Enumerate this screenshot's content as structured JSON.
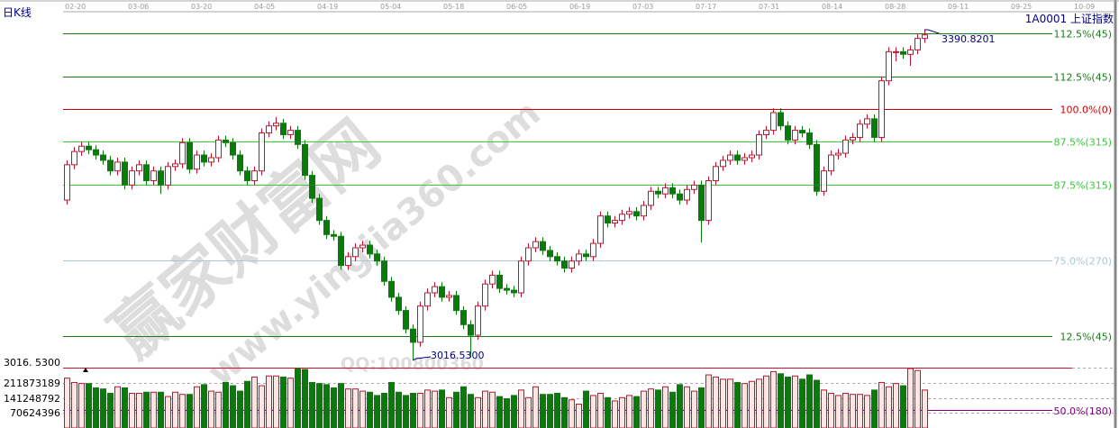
{
  "header": {
    "chart_type_label": "日K线",
    "symbol": "1A0001  上证指数"
  },
  "watermark": {
    "brand": "赢家财富网",
    "site": "www.yingjia360.com",
    "qq": "QQ:100800360"
  },
  "colors": {
    "up": "#c8102e",
    "up_fill": "#ffe4e4",
    "down": "#0a7a0a",
    "axis": "#999999"
  },
  "chart_data": {
    "type": "candlestick",
    "title": "",
    "x_ticks": [
      "02-20",
      "03-06",
      "03-20",
      "04-05",
      "04-19",
      "05-04",
      "05-18",
      "06-05",
      "06-19",
      "07-03",
      "07-17",
      "07-31",
      "08-14",
      "08-28",
      "09-11",
      "09-25",
      "10-09"
    ],
    "price_annotations": {
      "high": "3390.8201",
      "low": "3016.5300",
      "low_axis_label": "3016. 5300"
    },
    "fib_levels": [
      {
        "label": "112.5%(45)",
        "price": 3387,
        "color": "#1e7a1e"
      },
      {
        "label": "112.5%(45)",
        "price": 3338,
        "color": "#1e7a1e"
      },
      {
        "label": "100.0%(0)",
        "price": 3301,
        "color": "#cc0000"
      },
      {
        "label": "87.5%(315)",
        "price": 3264,
        "color": "#33cc33"
      },
      {
        "label": "87.5%(315)",
        "price": 3215,
        "color": "#33cc33"
      },
      {
        "label": "75.0%(270)",
        "price": 3130,
        "color": "#a9c6dc"
      },
      {
        "label": "12.5%(45)",
        "price": 3044,
        "color": "#1e7a1e"
      }
    ],
    "volume_axis_labels": [
      "211873189",
      "141248792",
      "70624396"
    ],
    "volume_fib": {
      "label": "50.0%(180)",
      "color": "#800080"
    },
    "ohlc": [
      [
        3198,
        3243,
        3193,
        3238
      ],
      [
        3238,
        3258,
        3233,
        3253
      ],
      [
        3253,
        3264,
        3248,
        3259
      ],
      [
        3259,
        3264,
        3250,
        3255
      ],
      [
        3255,
        3260,
        3244,
        3249
      ],
      [
        3249,
        3254,
        3238,
        3243
      ],
      [
        3243,
        3248,
        3226,
        3231
      ],
      [
        3231,
        3246,
        3226,
        3241
      ],
      [
        3241,
        3246,
        3210,
        3215
      ],
      [
        3215,
        3236,
        3210,
        3231
      ],
      [
        3231,
        3243,
        3226,
        3238
      ],
      [
        3238,
        3243,
        3215,
        3220
      ],
      [
        3220,
        3236,
        3215,
        3231
      ],
      [
        3231,
        3236,
        3205,
        3215
      ],
      [
        3215,
        3241,
        3210,
        3236
      ],
      [
        3236,
        3244,
        3231,
        3239
      ],
      [
        3239,
        3268,
        3234,
        3263
      ],
      [
        3263,
        3268,
        3228,
        3233
      ],
      [
        3233,
        3254,
        3228,
        3249
      ],
      [
        3249,
        3254,
        3236,
        3241
      ],
      [
        3241,
        3251,
        3236,
        3246
      ],
      [
        3246,
        3271,
        3241,
        3266
      ],
      [
        3266,
        3271,
        3258,
        3263
      ],
      [
        3263,
        3268,
        3244,
        3249
      ],
      [
        3249,
        3254,
        3226,
        3231
      ],
      [
        3231,
        3236,
        3215,
        3220
      ],
      [
        3220,
        3236,
        3215,
        3231
      ],
      [
        3231,
        3279,
        3226,
        3274
      ],
      [
        3274,
        3287,
        3269,
        3282
      ],
      [
        3282,
        3292,
        3277,
        3285
      ],
      [
        3285,
        3290,
        3267,
        3272
      ],
      [
        3272,
        3282,
        3267,
        3277
      ],
      [
        3277,
        3282,
        3256,
        3261
      ],
      [
        3261,
        3266,
        3221,
        3226
      ],
      [
        3226,
        3231,
        3195,
        3200
      ],
      [
        3200,
        3205,
        3170,
        3175
      ],
      [
        3175,
        3180,
        3154,
        3159
      ],
      [
        3159,
        3164,
        3152,
        3157
      ],
      [
        3157,
        3162,
        3119,
        3124
      ],
      [
        3124,
        3139,
        3119,
        3134
      ],
      [
        3134,
        3149,
        3129,
        3144
      ],
      [
        3144,
        3152,
        3139,
        3147
      ],
      [
        3147,
        3152,
        3132,
        3137
      ],
      [
        3137,
        3142,
        3124,
        3129
      ],
      [
        3129,
        3134,
        3101,
        3106
      ],
      [
        3106,
        3111,
        3083,
        3088
      ],
      [
        3088,
        3093,
        3068,
        3073
      ],
      [
        3073,
        3078,
        3047,
        3052
      ],
      [
        3052,
        3057,
        3016.53,
        3037
      ],
      [
        3037,
        3083,
        3032,
        3078
      ],
      [
        3078,
        3098,
        3073,
        3093
      ],
      [
        3093,
        3105,
        3088,
        3100
      ],
      [
        3100,
        3105,
        3083,
        3088
      ],
      [
        3088,
        3095,
        3083,
        3090
      ],
      [
        3090,
        3095,
        3068,
        3073
      ],
      [
        3073,
        3078,
        3052,
        3057
      ],
      [
        3057,
        3062,
        3020,
        3045
      ],
      [
        3045,
        3083,
        3040,
        3078
      ],
      [
        3078,
        3108,
        3073,
        3103
      ],
      [
        3103,
        3118,
        3098,
        3113
      ],
      [
        3113,
        3118,
        3093,
        3098
      ],
      [
        3098,
        3103,
        3091,
        3096
      ],
      [
        3096,
        3101,
        3088,
        3093
      ],
      [
        3093,
        3134,
        3088,
        3129
      ],
      [
        3129,
        3149,
        3124,
        3144
      ],
      [
        3144,
        3156,
        3139,
        3151
      ],
      [
        3151,
        3156,
        3136,
        3141
      ],
      [
        3141,
        3146,
        3129,
        3134
      ],
      [
        3134,
        3139,
        3124,
        3129
      ],
      [
        3129,
        3134,
        3116,
        3121
      ],
      [
        3121,
        3134,
        3116,
        3129
      ],
      [
        3129,
        3142,
        3124,
        3137
      ],
      [
        3137,
        3142,
        3129,
        3134
      ],
      [
        3134,
        3154,
        3129,
        3149
      ],
      [
        3149,
        3185,
        3144,
        3180
      ],
      [
        3180,
        3185,
        3167,
        3172
      ],
      [
        3172,
        3180,
        3167,
        3175
      ],
      [
        3175,
        3187,
        3170,
        3182
      ],
      [
        3182,
        3190,
        3177,
        3185
      ],
      [
        3185,
        3190,
        3175,
        3180
      ],
      [
        3180,
        3197,
        3175,
        3192
      ],
      [
        3192,
        3213,
        3187,
        3208
      ],
      [
        3208,
        3213,
        3200,
        3205
      ],
      [
        3205,
        3217,
        3200,
        3212
      ],
      [
        3212,
        3217,
        3200,
        3205
      ],
      [
        3205,
        3210,
        3193,
        3198
      ],
      [
        3198,
        3215,
        3193,
        3210
      ],
      [
        3210,
        3220,
        3205,
        3215
      ],
      [
        3215,
        3220,
        3150,
        3175
      ],
      [
        3175,
        3225,
        3170,
        3220
      ],
      [
        3220,
        3241,
        3215,
        3236
      ],
      [
        3236,
        3248,
        3231,
        3243
      ],
      [
        3243,
        3254,
        3238,
        3249
      ],
      [
        3249,
        3254,
        3238,
        3243
      ],
      [
        3243,
        3251,
        3238,
        3246
      ],
      [
        3246,
        3254,
        3241,
        3249
      ],
      [
        3249,
        3277,
        3244,
        3272
      ],
      [
        3272,
        3282,
        3267,
        3277
      ],
      [
        3277,
        3302,
        3272,
        3297
      ],
      [
        3297,
        3302,
        3277,
        3282
      ],
      [
        3282,
        3287,
        3261,
        3266
      ],
      [
        3266,
        3282,
        3261,
        3277
      ],
      [
        3277,
        3282,
        3269,
        3274
      ],
      [
        3274,
        3279,
        3256,
        3261
      ],
      [
        3261,
        3266,
        3203,
        3208
      ],
      [
        3208,
        3236,
        3203,
        3231
      ],
      [
        3231,
        3254,
        3226,
        3249
      ],
      [
        3249,
        3256,
        3244,
        3251
      ],
      [
        3251,
        3271,
        3246,
        3266
      ],
      [
        3266,
        3274,
        3261,
        3269
      ],
      [
        3269,
        3289,
        3264,
        3284
      ],
      [
        3284,
        3295,
        3279,
        3290
      ],
      [
        3290,
        3295,
        3264,
        3269
      ],
      [
        3269,
        3338,
        3264,
        3333
      ],
      [
        3333,
        3371,
        3328,
        3366
      ],
      [
        3366,
        3371,
        3355,
        3366
      ],
      [
        3366,
        3371,
        3358,
        3363
      ],
      [
        3363,
        3373,
        3350,
        3368
      ],
      [
        3368,
        3386,
        3363,
        3381
      ],
      [
        3381,
        3390.82,
        3376,
        3385
      ]
    ],
    "volume": [
      230000000,
      210000000,
      205000000,
      205000000,
      185000000,
      180000000,
      160000000,
      190000000,
      185000000,
      160000000,
      160000000,
      165000000,
      165000000,
      165000000,
      145000000,
      165000000,
      155000000,
      155000000,
      190000000,
      200000000,
      170000000,
      165000000,
      210000000,
      195000000,
      170000000,
      215000000,
      235000000,
      195000000,
      240000000,
      240000000,
      235000000,
      230000000,
      275000000,
      270000000,
      210000000,
      205000000,
      200000000,
      185000000,
      205000000,
      180000000,
      180000000,
      170000000,
      165000000,
      150000000,
      160000000,
      210000000,
      165000000,
      150000000,
      160000000,
      160000000,
      175000000,
      170000000,
      175000000,
      140000000,
      165000000,
      190000000,
      155000000,
      140000000,
      170000000,
      165000000,
      145000000,
      135000000,
      150000000,
      175000000,
      140000000,
      190000000,
      155000000,
      155000000,
      160000000,
      140000000,
      130000000,
      110000000,
      170000000,
      150000000,
      160000000,
      140000000,
      125000000,
      140000000,
      150000000,
      145000000,
      170000000,
      180000000,
      175000000,
      190000000,
      165000000,
      200000000,
      190000000,
      170000000,
      185000000,
      245000000,
      235000000,
      225000000,
      225000000,
      210000000,
      205000000,
      215000000,
      225000000,
      240000000,
      260000000,
      250000000,
      235000000,
      240000000,
      225000000,
      245000000,
      220000000,
      175000000,
      160000000,
      150000000,
      160000000,
      155000000,
      155000000,
      150000000,
      175000000,
      210000000,
      190000000,
      205000000,
      195000000,
      275000000,
      265000000,
      175000000
    ]
  }
}
